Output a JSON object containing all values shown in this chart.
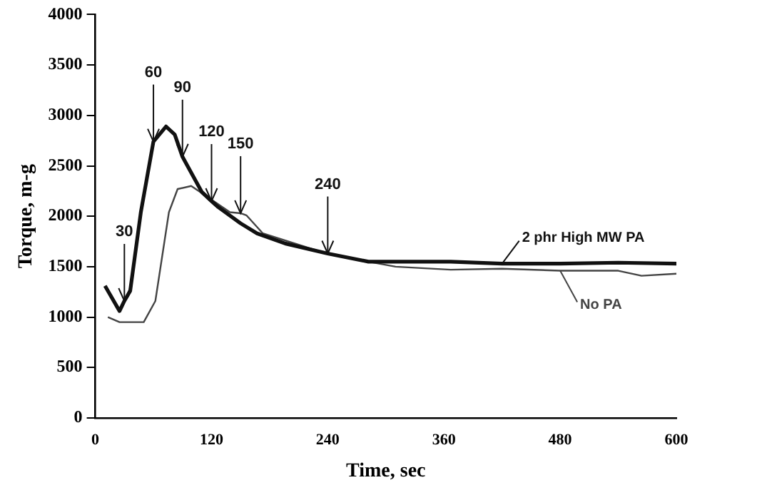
{
  "chart_data": {
    "type": "line",
    "xlabel": "Time, sec",
    "ylabel": "Torque, m-g",
    "xlim": [
      0,
      600
    ],
    "xticks": [
      0,
      120,
      240,
      360,
      480,
      600
    ],
    "ylim": [
      0,
      4000
    ],
    "yticks": [
      0,
      500,
      1000,
      1500,
      2000,
      2500,
      3000,
      3500,
      4000
    ],
    "grid": false,
    "legend": "right",
    "marker": "none",
    "line_style": "solid",
    "series": [
      {
        "name": "2 phr High MW PA",
        "color": "#111111",
        "x": [
          10,
          25,
          30,
          36,
          47,
          60,
          73,
          82,
          90,
          110,
          120,
          127,
          150,
          167,
          196,
          240,
          282,
          322,
          367,
          420,
          480,
          540,
          600
        ],
        "values": [
          1310,
          1060,
          1160,
          1260,
          2040,
          2740,
          2890,
          2810,
          2590,
          2240,
          2150,
          2090,
          1930,
          1830,
          1730,
          1630,
          1550,
          1550,
          1550,
          1530,
          1530,
          1540,
          1530
        ]
      },
      {
        "name": "No PA",
        "color": "#444444",
        "x": [
          13,
          25,
          50,
          62,
          76,
          85,
          99,
          116,
          139,
          150,
          156,
          173,
          242,
          310,
          367,
          420,
          480,
          540,
          564,
          600
        ],
        "values": [
          1000,
          950,
          950,
          1160,
          2040,
          2270,
          2300,
          2190,
          2040,
          2030,
          2010,
          1830,
          1620,
          1500,
          1470,
          1480,
          1460,
          1460,
          1410,
          1430
        ]
      }
    ],
    "annotations": [
      {
        "text": "30",
        "x": 30,
        "y": 1160
      },
      {
        "text": "60",
        "x": 60,
        "y": 2740
      },
      {
        "text": "90",
        "x": 90,
        "y": 2590
      },
      {
        "text": "120",
        "x": 120,
        "y": 2150
      },
      {
        "text": "150",
        "x": 150,
        "y": 2030
      },
      {
        "text": "240",
        "x": 240,
        "y": 1630
      }
    ]
  }
}
